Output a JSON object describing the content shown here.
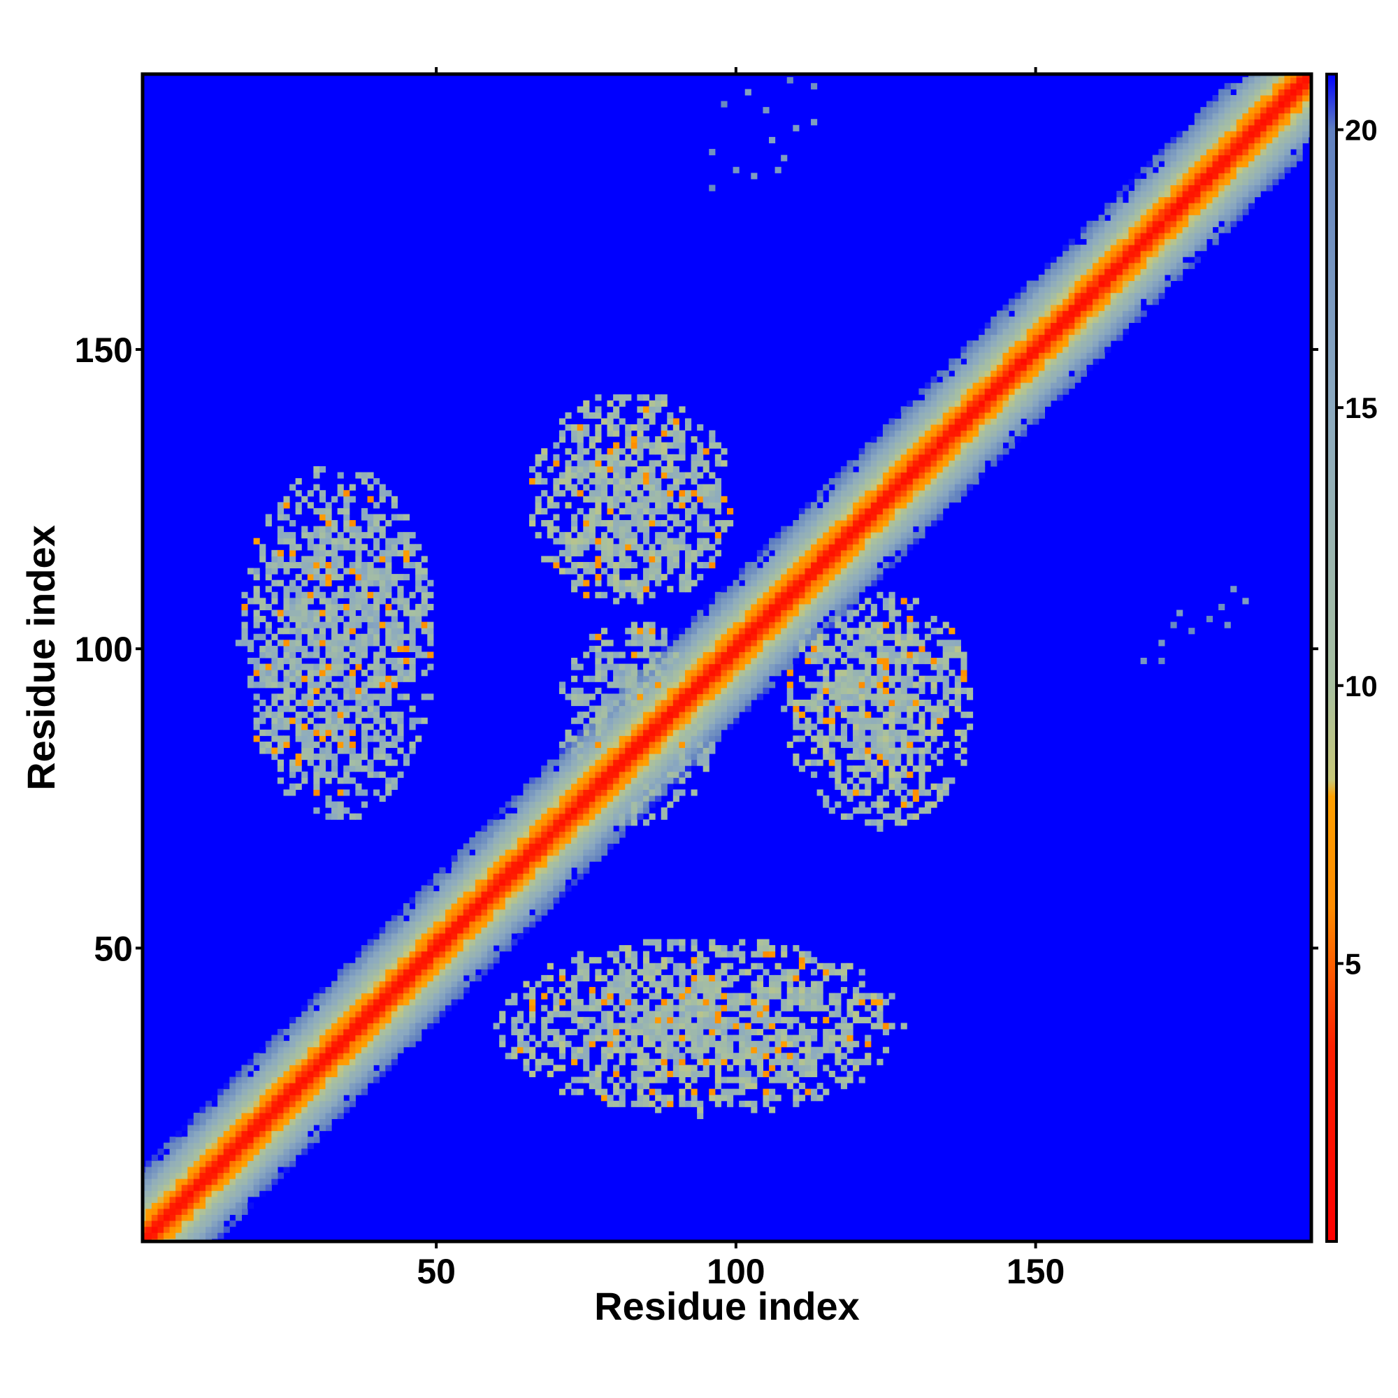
{
  "chart_data": {
    "type": "heatmap",
    "title": "",
    "xlabel": "Residue index",
    "ylabel": "Residue index",
    "xlim": [
      1,
      196
    ],
    "ylim": [
      1,
      196
    ],
    "x_ticks": [
      50,
      100,
      150
    ],
    "y_ticks": [
      50,
      100,
      150
    ],
    "x_tick_labels": [
      "50",
      "100",
      "150"
    ],
    "y_tick_labels": [
      "50",
      "100",
      "150"
    ],
    "colorbar": {
      "range": [
        0,
        21
      ],
      "ticks": [
        5,
        10,
        15,
        20
      ],
      "tick_labels": [
        "5",
        "10",
        "15",
        "20"
      ],
      "background_color": "#0000ff",
      "stops": [
        {
          "value": 0,
          "color": "#ff0000"
        },
        {
          "value": 3.5,
          "color": "#ff2000"
        },
        {
          "value": 6,
          "color": "#ff8c00"
        },
        {
          "value": 8,
          "color": "#ffa000"
        },
        {
          "value": 8.3,
          "color": "#c8c878"
        },
        {
          "value": 10,
          "color": "#a8c0a0"
        },
        {
          "value": 15,
          "color": "#8caac0"
        },
        {
          "value": 20,
          "color": "#6080c0"
        },
        {
          "value": 21,
          "color": "#0000ff"
        }
      ]
    },
    "diagonal": {
      "band_halfwidth_residues": 12,
      "core_value": 2
    },
    "contact_regions": [
      {
        "x": [
          17,
          50
        ],
        "y": [
          71,
          131
        ],
        "level": 13
      },
      {
        "x": [
          65,
          100
        ],
        "y": [
          107,
          143
        ],
        "level": 12
      },
      {
        "x": [
          70,
          97
        ],
        "y": [
          70,
          105
        ],
        "level": 13
      },
      {
        "x": [
          108,
          140
        ],
        "y": [
          70,
          110
        ],
        "level": 12
      },
      {
        "x": [
          60,
          128
        ],
        "y": [
          22,
          52
        ],
        "level": 12
      }
    ],
    "sparse_points": [
      {
        "x": 96,
        "y": 183
      },
      {
        "x": 100,
        "y": 180
      },
      {
        "x": 103,
        "y": 179
      },
      {
        "x": 106,
        "y": 185
      },
      {
        "x": 108,
        "y": 182
      },
      {
        "x": 110,
        "y": 187
      },
      {
        "x": 113,
        "y": 188
      },
      {
        "x": 107,
        "y": 180
      },
      {
        "x": 98,
        "y": 191
      },
      {
        "x": 102,
        "y": 193
      },
      {
        "x": 105,
        "y": 190
      },
      {
        "x": 109,
        "y": 195
      },
      {
        "x": 113,
        "y": 194
      },
      {
        "x": 96,
        "y": 177
      },
      {
        "x": 168,
        "y": 98
      },
      {
        "x": 171,
        "y": 101
      },
      {
        "x": 173,
        "y": 104
      },
      {
        "x": 176,
        "y": 103
      },
      {
        "x": 179,
        "y": 105
      },
      {
        "x": 181,
        "y": 107
      },
      {
        "x": 183,
        "y": 110
      },
      {
        "x": 185,
        "y": 108
      },
      {
        "x": 182,
        "y": 104
      },
      {
        "x": 171,
        "y": 98
      },
      {
        "x": 174,
        "y": 106
      }
    ]
  }
}
